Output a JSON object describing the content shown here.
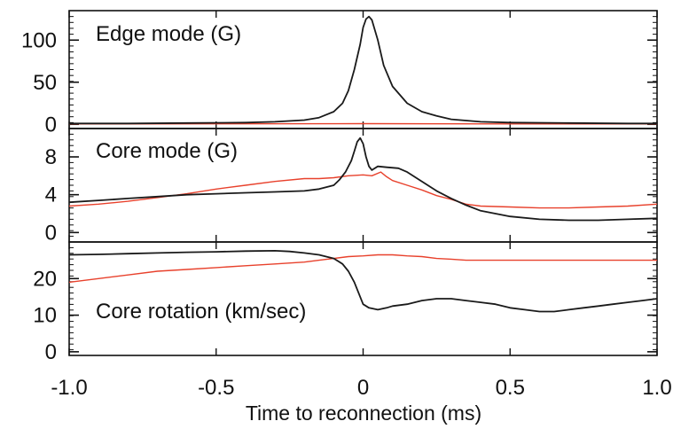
{
  "chart_data": {
    "type": "line",
    "xlabel": "Time to reconnection (ms)",
    "xlim": [
      -1.0,
      1.0
    ],
    "x_ticks": [
      "-1.0",
      "-0.5",
      "0",
      "0.5",
      "1.0"
    ],
    "series_colors": {
      "black": "#1a1a1a",
      "red": "#e8412c"
    },
    "panels": [
      {
        "title": "Edge mode (G)",
        "ylim": [
          -5,
          135
        ],
        "y_ticks": [
          "0",
          "50",
          "100"
        ],
        "series": [
          {
            "color": "black",
            "x": [
              -1.0,
              -0.8,
              -0.6,
              -0.4,
              -0.3,
              -0.2,
              -0.15,
              -0.1,
              -0.07,
              -0.05,
              -0.03,
              -0.01,
              0.0,
              0.01,
              0.02,
              0.03,
              0.05,
              0.07,
              0.1,
              0.15,
              0.2,
              0.25,
              0.3,
              0.4,
              0.5,
              0.7,
              0.9,
              1.0
            ],
            "y": [
              1,
              1,
              1.5,
              2,
              3,
              5,
              8,
              15,
              25,
              40,
              65,
              95,
              115,
              125,
              128,
              124,
              100,
              70,
              45,
              25,
              15,
              10,
              6,
              3,
              2,
              1.5,
              1,
              1
            ]
          },
          {
            "color": "red",
            "x": [
              -1.0,
              -0.5,
              0.0,
              0.5,
              1.0
            ],
            "y": [
              0.5,
              0.6,
              0.8,
              0.5,
              0.5
            ]
          }
        ]
      },
      {
        "title": "Core mode (G)",
        "ylim": [
          -1,
          11
        ],
        "y_ticks": [
          "0",
          "4",
          "8"
        ],
        "series": [
          {
            "color": "black",
            "x": [
              -1.0,
              -0.9,
              -0.8,
              -0.7,
              -0.6,
              -0.5,
              -0.4,
              -0.3,
              -0.2,
              -0.15,
              -0.1,
              -0.08,
              -0.06,
              -0.04,
              -0.03,
              -0.02,
              -0.01,
              0.0,
              0.01,
              0.02,
              0.03,
              0.05,
              0.08,
              0.12,
              0.15,
              0.2,
              0.25,
              0.3,
              0.35,
              0.4,
              0.5,
              0.6,
              0.7,
              0.8,
              0.9,
              1.0
            ],
            "y": [
              3.2,
              3.4,
              3.6,
              3.8,
              4.0,
              4.1,
              4.2,
              4.3,
              4.4,
              4.6,
              5.0,
              5.6,
              6.4,
              7.6,
              8.6,
              9.6,
              10.0,
              9.4,
              8.0,
              7.0,
              6.6,
              7.0,
              6.9,
              6.8,
              6.4,
              5.4,
              4.4,
              3.6,
              2.9,
              2.3,
              1.7,
              1.4,
              1.3,
              1.3,
              1.4,
              1.5
            ]
          },
          {
            "color": "red",
            "x": [
              -1.0,
              -0.9,
              -0.8,
              -0.7,
              -0.6,
              -0.5,
              -0.4,
              -0.3,
              -0.2,
              -0.15,
              -0.1,
              -0.05,
              0.0,
              0.03,
              0.06,
              0.08,
              0.1,
              0.15,
              0.2,
              0.25,
              0.3,
              0.35,
              0.4,
              0.5,
              0.6,
              0.7,
              0.8,
              0.9,
              1.0
            ],
            "y": [
              2.8,
              3.0,
              3.3,
              3.7,
              4.1,
              4.6,
              5.0,
              5.4,
              5.7,
              5.7,
              5.8,
              6.0,
              6.1,
              6.0,
              6.4,
              5.9,
              5.5,
              5.0,
              4.5,
              3.9,
              3.5,
              3.0,
              2.8,
              2.7,
              2.6,
              2.6,
              2.7,
              2.8,
              3.0
            ]
          }
        ]
      },
      {
        "title": "Core rotation (km/sec)",
        "ylim": [
          -1,
          30
        ],
        "y_ticks": [
          "0",
          "10",
          "20"
        ],
        "series": [
          {
            "color": "black",
            "x": [
              -1.0,
              -0.9,
              -0.8,
              -0.7,
              -0.6,
              -0.5,
              -0.4,
              -0.3,
              -0.25,
              -0.2,
              -0.15,
              -0.1,
              -0.07,
              -0.05,
              -0.03,
              -0.02,
              -0.01,
              0.0,
              0.02,
              0.05,
              0.08,
              0.1,
              0.15,
              0.2,
              0.25,
              0.3,
              0.35,
              0.4,
              0.45,
              0.5,
              0.55,
              0.6,
              0.65,
              0.7,
              0.75,
              0.8,
              0.85,
              0.9,
              0.95,
              1.0
            ],
            "y": [
              26.5,
              26.6,
              26.8,
              27,
              27.2,
              27.3,
              27.5,
              27.6,
              27.4,
              27.0,
              26.5,
              25.5,
              24,
              22,
              19,
              17,
              15,
              13,
              12,
              11.5,
              12,
              12.5,
              13,
              14,
              14.5,
              14.5,
              14,
              13.5,
              13,
              12,
              11.5,
              11,
              11,
              11.5,
              12,
              12.5,
              13,
              13.5,
              14,
              14.5
            ]
          },
          {
            "color": "red",
            "x": [
              -1.0,
              -0.9,
              -0.8,
              -0.7,
              -0.6,
              -0.5,
              -0.4,
              -0.3,
              -0.2,
              -0.15,
              -0.1,
              -0.05,
              0.0,
              0.05,
              0.1,
              0.15,
              0.2,
              0.25,
              0.3,
              0.35,
              0.4,
              0.5,
              0.6,
              0.7,
              0.8,
              0.9,
              1.0
            ],
            "y": [
              19,
              20,
              21,
              22,
              22.5,
              23,
              23.5,
              24,
              24.5,
              25,
              25.5,
              26,
              26.2,
              26.5,
              26.5,
              26.2,
              26,
              25.5,
              25.3,
              25,
              25,
              25,
              25,
              25,
              25,
              25,
              25
            ]
          }
        ]
      }
    ]
  }
}
